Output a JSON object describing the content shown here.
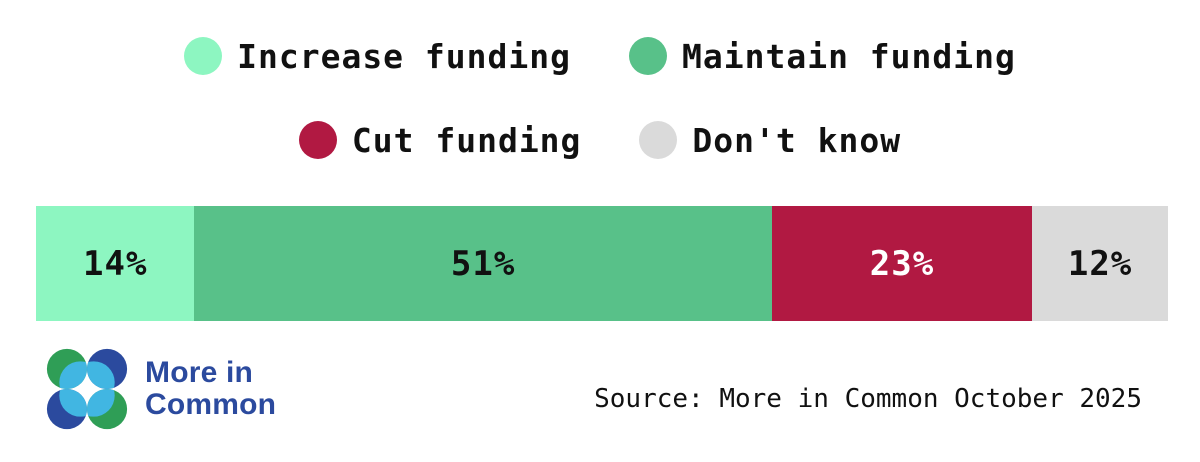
{
  "chart_data": {
    "type": "bar",
    "variant": "horizontal-stacked",
    "title": "",
    "xlabel": "",
    "ylabel": "",
    "xlim": [
      0,
      100
    ],
    "grid": false,
    "legend_position": "top",
    "categories": [
      "Increase funding",
      "Maintain funding",
      "Cut funding",
      "Don't know"
    ],
    "values": [
      14,
      51,
      23,
      12
    ],
    "value_labels": [
      "14%",
      "51%",
      "23%",
      "12%"
    ],
    "colors": [
      "#8DF6C1",
      "#58C189",
      "#B11942",
      "#DADADA"
    ],
    "label_text_colors": [
      "#111111",
      "#111111",
      "#FFFFFF",
      "#111111"
    ],
    "source": "Source: More in Common October 2025"
  },
  "footer": {
    "logo": {
      "name": "More in Common",
      "text_line1": "More in",
      "text_line2": "Common",
      "colors": {
        "green": "#2F9E56",
        "blue": "#2B4A9E",
        "light_blue": "#41B6E2",
        "text": "#2B4A9E"
      }
    }
  }
}
